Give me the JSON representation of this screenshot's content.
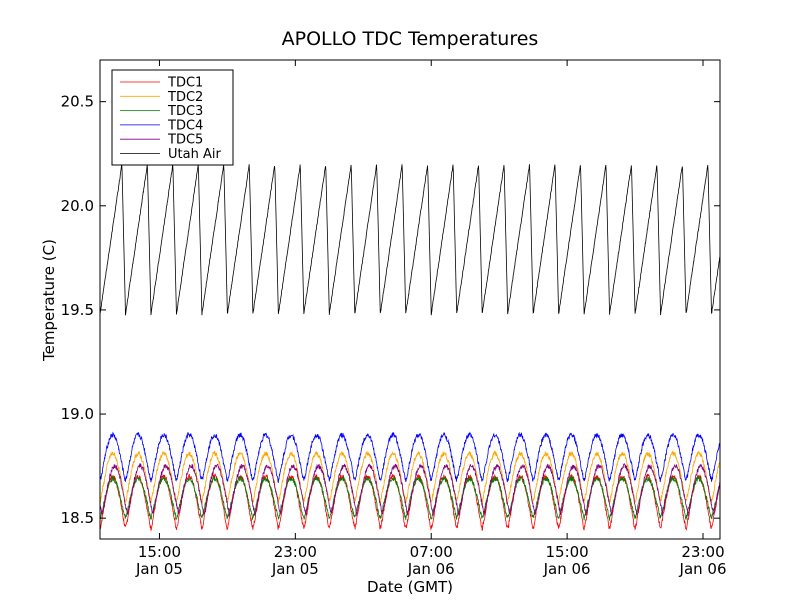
{
  "chart_data": {
    "type": "line",
    "title": "APOLLO TDC Temperatures",
    "xlabel": "Date (GMT)",
    "ylabel": "Temperature (C)",
    "x_unit": "hours since Jan 05 11:30 GMT",
    "xlim": [
      0,
      36.5
    ],
    "ylim": [
      18.4,
      20.7
    ],
    "cycle_period_hours": 1.5,
    "x_ticks": [
      {
        "x": 3.5,
        "time": "15:00",
        "date": "Jan 05"
      },
      {
        "x": 11.5,
        "time": "23:00",
        "date": "Jan 05"
      },
      {
        "x": 19.5,
        "time": "07:00",
        "date": "Jan 06"
      },
      {
        "x": 27.5,
        "time": "15:00",
        "date": "Jan 06"
      },
      {
        "x": 35.5,
        "time": "23:00",
        "date": "Jan 06"
      }
    ],
    "y_ticks": [
      {
        "value": 18.5,
        "label": "18.5"
      },
      {
        "value": 19.0,
        "label": "19.0"
      },
      {
        "value": 19.5,
        "label": "19.5"
      },
      {
        "value": 20.0,
        "label": "20.0"
      },
      {
        "value": 20.5,
        "label": "20.5"
      }
    ],
    "series": [
      {
        "name": "TDC1",
        "color": "#ff0000",
        "shape": "plateau",
        "min": 18.45,
        "max": 18.7,
        "phase": 0.0
      },
      {
        "name": "TDC2",
        "color": "#ffa500",
        "shape": "plateau",
        "min": 18.58,
        "max": 18.81,
        "phase": 0.0
      },
      {
        "name": "TDC3",
        "color": "#008000",
        "shape": "plateau",
        "min": 18.5,
        "max": 18.69,
        "phase": 0.0
      },
      {
        "name": "TDC4",
        "color": "#0000ff",
        "shape": "plateau",
        "min": 18.68,
        "max": 18.9,
        "phase": 0.0
      },
      {
        "name": "TDC5",
        "color": "#800080",
        "shape": "plateau",
        "min": 18.52,
        "max": 18.75,
        "phase": -0.08
      },
      {
        "name": "Utah Air",
        "color": "#000000",
        "shape": "sawtooth",
        "min": 19.48,
        "max": 20.2,
        "phase": 0.0
      }
    ]
  }
}
